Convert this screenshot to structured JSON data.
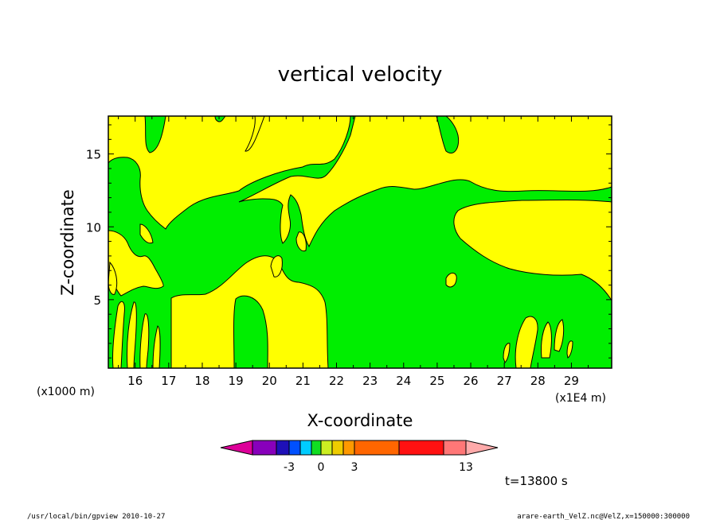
{
  "chart_data": {
    "type": "contour",
    "title": "vertical velocity",
    "xlabel": "X-coordinate",
    "ylabel": "Z-coordinate",
    "x_ticks": [
      16,
      17,
      18,
      19,
      20,
      21,
      22,
      23,
      24,
      25,
      26,
      27,
      28,
      29
    ],
    "y_ticks": [
      5,
      10,
      15
    ],
    "xlim": [
      15.2,
      30.2
    ],
    "ylim": [
      0.3,
      17.6
    ],
    "x_unit_left": "(x1000 m)",
    "x_unit_right": "(x1E4 m)",
    "colorbar": {
      "colors": [
        "#dd0099",
        "#8800bb",
        "#1e10b8",
        "#0050ff",
        "#00ccff",
        "#11dd22",
        "#ccee22",
        "#eecc00",
        "#ff9900",
        "#ff6600",
        "#ff1111",
        "#ff7777",
        "#ffaaaa"
      ],
      "labels": [
        "-3",
        "0",
        "3",
        "13"
      ]
    },
    "fill_colors": {
      "positive": "#ffff00",
      "zero": "#00ee00"
    },
    "time_label": "t=13800 s",
    "footer_left": "/usr/local/bin/gpview  2010-10-27",
    "footer_right": "arare-earth_VelZ.nc@VelZ,x=150000:300000"
  }
}
